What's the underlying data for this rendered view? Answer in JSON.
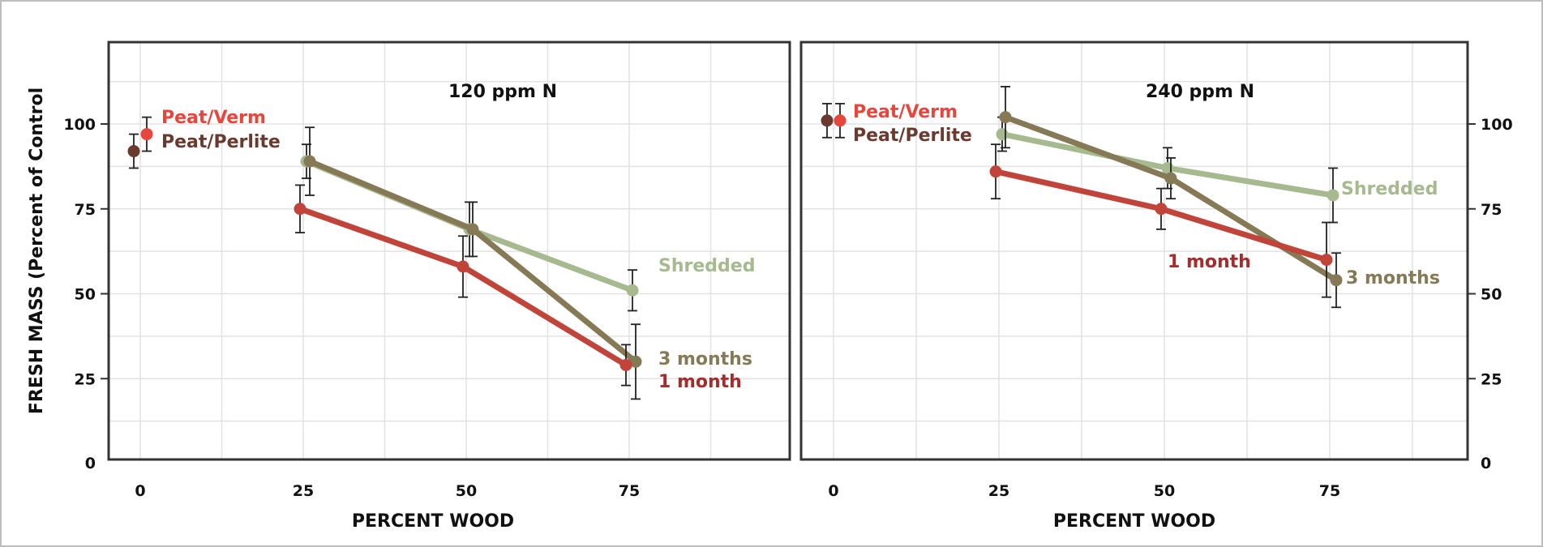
{
  "chart_data": [
    {
      "type": "line",
      "title": "120 ppm N",
      "xlabel": "PERCENT WOOD",
      "ylabel": "FRESH MASS (Percent of Control",
      "xlim": [
        -5,
        100
      ],
      "ylim": [
        0,
        125
      ],
      "xticks": [
        0,
        25,
        50,
        75
      ],
      "yticks": [
        0,
        25,
        50,
        75,
        100
      ],
      "grid": true,
      "controls": [
        {
          "name": "Peat/Verm",
          "x": 0,
          "y": 97,
          "err": 5,
          "color": "#e8453c"
        },
        {
          "name": "Peat/Perlite",
          "x": 0,
          "y": 92,
          "err": 5,
          "color": "#6b3a2e"
        }
      ],
      "series": [
        {
          "name": "Shredded",
          "color": "#a7b98f",
          "x": [
            25,
            50,
            75
          ],
          "y": [
            89,
            69,
            51
          ],
          "err": [
            5,
            8,
            6
          ]
        },
        {
          "name": "3 months",
          "color": "#857a55",
          "x": [
            25,
            50,
            75
          ],
          "y": [
            89,
            69,
            30
          ],
          "err": [
            10,
            8,
            11
          ]
        },
        {
          "name": "1 month",
          "color": "#c0443a",
          "x": [
            25,
            50,
            75
          ],
          "y": [
            75,
            58,
            29
          ],
          "err": [
            7,
            9,
            6
          ]
        }
      ]
    },
    {
      "type": "line",
      "title": "240 ppm N",
      "xlabel": "PERCENT WOOD",
      "ylabel": "",
      "xlim": [
        -5,
        100
      ],
      "ylim": [
        0,
        125
      ],
      "xticks": [
        0,
        25,
        50,
        75
      ],
      "yticks": [
        0,
        25,
        50,
        75,
        100
      ],
      "grid": true,
      "controls": [
        {
          "name": "Peat/Verm",
          "x": 0,
          "y": 101,
          "err": 5,
          "color": "#e8453c"
        },
        {
          "name": "Peat/Perlite",
          "x": 0,
          "y": 101,
          "err": 5,
          "color": "#6b3a2e"
        }
      ],
      "series": [
        {
          "name": "Shredded",
          "color": "#a7b98f",
          "x": [
            25,
            50,
            75
          ],
          "y": [
            97,
            87,
            79
          ],
          "err": [
            5,
            6,
            8
          ]
        },
        {
          "name": "3 months",
          "color": "#857a55",
          "x": [
            25,
            50,
            75
          ],
          "y": [
            102,
            84,
            54
          ],
          "err": [
            9,
            6,
            8
          ]
        },
        {
          "name": "1 month",
          "color": "#c0443a",
          "x": [
            25,
            50,
            75
          ],
          "y": [
            86,
            75,
            60
          ],
          "err": [
            8,
            6,
            11
          ]
        }
      ]
    }
  ]
}
